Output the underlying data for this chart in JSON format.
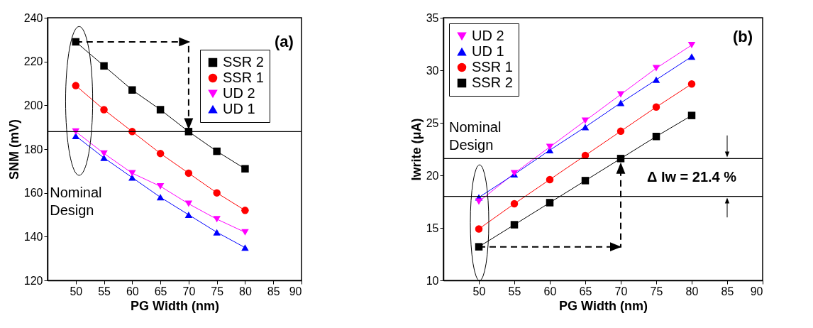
{
  "chart_data": [
    {
      "type": "line",
      "xlabel": "PG Width (nm)",
      "ylabel": "SNM (mV)",
      "xlim": [
        45,
        90
      ],
      "xticks": [
        50,
        55,
        60,
        65,
        70,
        75,
        80,
        85,
        90
      ],
      "ylim": [
        120,
        240
      ],
      "yticks": [
        120,
        140,
        160,
        180,
        200,
        220,
        240
      ],
      "x": [
        50,
        55,
        60,
        65,
        70,
        75,
        80
      ],
      "legend": "top right",
      "series": [
        {
          "name": "SSR 2",
          "color": "#000000",
          "marker": "square",
          "values": [
            229,
            218,
            207,
            198,
            188,
            179,
            171
          ]
        },
        {
          "name": "SSR 1",
          "color": "#ff0000",
          "marker": "circle",
          "values": [
            209,
            198,
            188,
            178,
            169,
            160,
            152
          ]
        },
        {
          "name": "UD 2",
          "color": "#ff00ff",
          "marker": "triangle-down",
          "values": [
            188,
            178,
            169,
            163,
            155,
            148,
            142
          ]
        },
        {
          "name": "UD 1",
          "color": "#0000ff",
          "marker": "triangle-up",
          "values": [
            186,
            176,
            167,
            158,
            150,
            142,
            135
          ]
        }
      ],
      "ref_lines": [
        {
          "axis": "y",
          "value": 188,
          "color": "#000000"
        }
      ],
      "annotations": [
        "(a)",
        "Nominal\nDesign"
      ]
    },
    {
      "type": "line",
      "xlabel": "PG Width (nm)",
      "ylabel": "Iwrite (μA)",
      "xlim": [
        45,
        90
      ],
      "xticks": [
        50,
        55,
        60,
        65,
        70,
        75,
        80,
        85,
        90
      ],
      "ylim": [
        10,
        35
      ],
      "yticks": [
        10,
        15,
        20,
        25,
        30,
        35
      ],
      "x": [
        50,
        55,
        60,
        65,
        70,
        75,
        80
      ],
      "legend": "top left",
      "series": [
        {
          "name": "UD 2",
          "color": "#ff00ff",
          "marker": "triangle-down",
          "values": [
            17.5,
            20.2,
            22.7,
            25.2,
            27.7,
            30.2,
            32.4
          ]
        },
        {
          "name": "UD 1",
          "color": "#0000ff",
          "marker": "triangle-up",
          "values": [
            17.9,
            20.1,
            22.4,
            24.6,
            26.9,
            29.1,
            31.3
          ]
        },
        {
          "name": "SSR 1",
          "color": "#ff0000",
          "marker": "circle",
          "values": [
            14.9,
            17.3,
            19.6,
            21.9,
            24.2,
            26.5,
            28.7
          ]
        },
        {
          "name": "SSR 2",
          "color": "#000000",
          "marker": "square",
          "values": [
            13.2,
            15.3,
            17.4,
            19.5,
            21.6,
            23.7,
            25.7
          ]
        }
      ],
      "ref_lines": [
        {
          "axis": "y",
          "value": 21.6,
          "color": "#000000"
        },
        {
          "axis": "y",
          "value": 18,
          "color": "#000000"
        }
      ],
      "annotations": [
        "(b)",
        "Nominal\nDesign",
        "Δ Iw = 21.4 %"
      ]
    }
  ]
}
